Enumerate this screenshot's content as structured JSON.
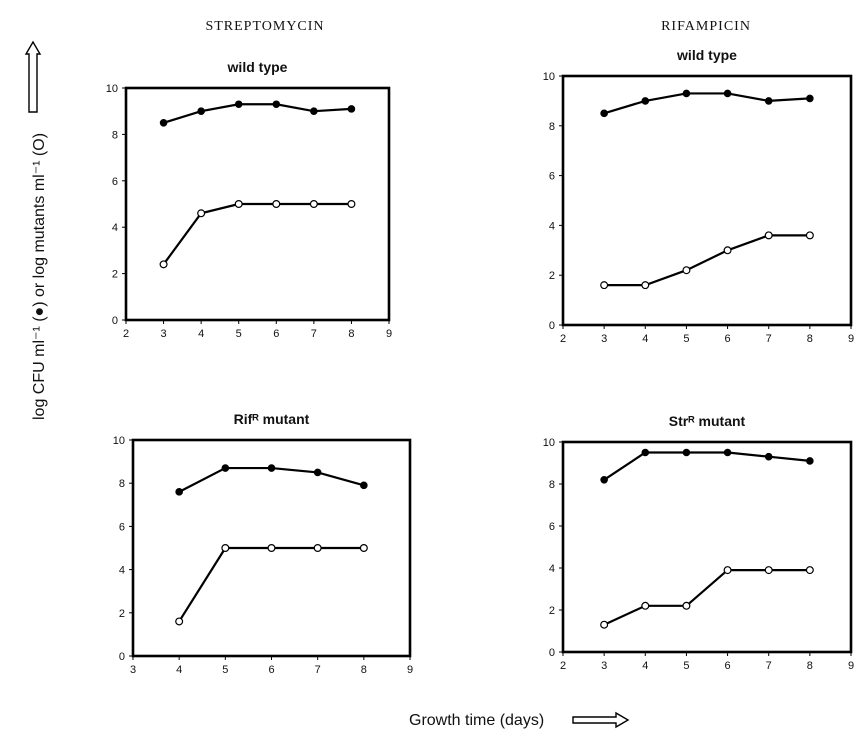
{
  "figure": {
    "column_titles": [
      "STREPTOMYCIN",
      "RIFAMPICIN"
    ],
    "ylabel": "log CFU ml⁻¹ (●) or log mutants ml⁻¹ (O)",
    "xlabel": "Growth time (days)"
  },
  "chart_data": [
    {
      "type": "line",
      "title": "wild type",
      "xlim": [
        2,
        9
      ],
      "ylim": [
        0,
        10
      ],
      "xticks": [
        2,
        3,
        4,
        5,
        6,
        7,
        8,
        9
      ],
      "yticks": [
        0,
        2,
        4,
        6,
        8,
        10
      ],
      "series": [
        {
          "marker": "filled",
          "x": [
            3,
            4,
            5,
            6,
            7,
            8
          ],
          "y": [
            8.5,
            9.0,
            9.3,
            9.3,
            9.0,
            9.1
          ]
        },
        {
          "marker": "open",
          "x": [
            3,
            4,
            5,
            6,
            7,
            8
          ],
          "y": [
            2.4,
            4.6,
            5.0,
            5.0,
            5.0,
            5.0
          ]
        }
      ]
    },
    {
      "type": "line",
      "title": "wild type",
      "xlim": [
        2,
        9
      ],
      "ylim": [
        0,
        10
      ],
      "xticks": [
        2,
        3,
        4,
        5,
        6,
        7,
        8,
        9
      ],
      "yticks": [
        0,
        2,
        4,
        6,
        8,
        10
      ],
      "series": [
        {
          "marker": "filled",
          "x": [
            3,
            4,
            5,
            6,
            7,
            8
          ],
          "y": [
            8.5,
            9.0,
            9.3,
            9.3,
            9.0,
            9.1
          ]
        },
        {
          "marker": "open",
          "x": [
            3,
            4,
            5,
            6,
            7,
            8
          ],
          "y": [
            1.6,
            1.6,
            2.2,
            3.0,
            3.6,
            3.6
          ]
        }
      ]
    },
    {
      "type": "line",
      "title": "Rifᴿ mutant",
      "xlim": [
        3,
        9
      ],
      "ylim": [
        0,
        10
      ],
      "xticks": [
        3,
        4,
        5,
        6,
        7,
        8,
        9
      ],
      "yticks": [
        0,
        2,
        4,
        6,
        8,
        10
      ],
      "series": [
        {
          "marker": "filled",
          "x": [
            4,
            5,
            6,
            7,
            8
          ],
          "y": [
            7.6,
            8.7,
            8.7,
            8.5,
            7.9
          ]
        },
        {
          "marker": "open",
          "x": [
            4,
            5,
            6,
            7,
            8
          ],
          "y": [
            1.6,
            5.0,
            5.0,
            5.0,
            5.0
          ]
        }
      ]
    },
    {
      "type": "line",
      "title": "Strᴿ mutant",
      "xlim": [
        2,
        9
      ],
      "ylim": [
        0,
        10
      ],
      "xticks": [
        2,
        3,
        4,
        5,
        6,
        7,
        8,
        9
      ],
      "yticks": [
        0,
        2,
        4,
        6,
        8,
        10
      ],
      "series": [
        {
          "marker": "filled",
          "x": [
            3,
            4,
            5,
            6,
            7,
            8
          ],
          "y": [
            8.2,
            9.5,
            9.5,
            9.5,
            9.3,
            9.1
          ]
        },
        {
          "marker": "open",
          "x": [
            3,
            4,
            5,
            6,
            7,
            8
          ],
          "y": [
            1.3,
            2.2,
            2.2,
            3.9,
            3.9,
            3.9
          ]
        }
      ]
    }
  ]
}
